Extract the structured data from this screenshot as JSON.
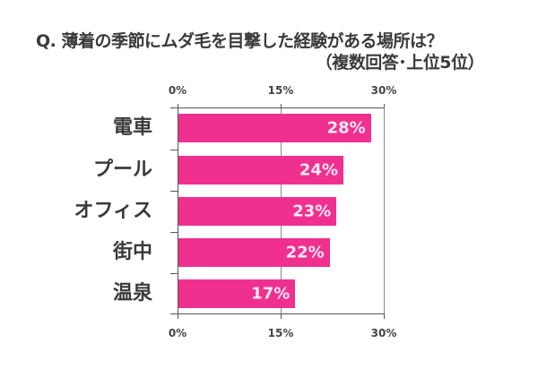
{
  "title": {
    "line1": "Q. 薄着の季節にムダ毛を目撃した経験がある場所は？",
    "line2": "（複数回答･上位5位）"
  },
  "colors": {
    "bar": "#F0308F",
    "text": "#3a3a3a",
    "axis": "#555555",
    "value_label": "#ffe8f3"
  },
  "axis": {
    "ticks": [
      "0%",
      "15%",
      "30%"
    ]
  },
  "chart_data": {
    "type": "bar",
    "orientation": "horizontal",
    "title": "Q. 薄着の季節にムダ毛を目撃した経験がある場所は？（複数回答･上位5位）",
    "categories": [
      "電車",
      "プール",
      "オフィス",
      "街中",
      "温泉"
    ],
    "values": [
      28,
      24,
      23,
      22,
      17
    ],
    "value_labels": [
      "28%",
      "24%",
      "23%",
      "22%",
      "17%"
    ],
    "xlabel": "",
    "ylabel": "",
    "xlim": [
      0,
      30
    ],
    "x_ticks": [
      "0%",
      "15%",
      "30%"
    ],
    "x_axis_position": "top and bottom",
    "grid": true,
    "legend": null
  }
}
